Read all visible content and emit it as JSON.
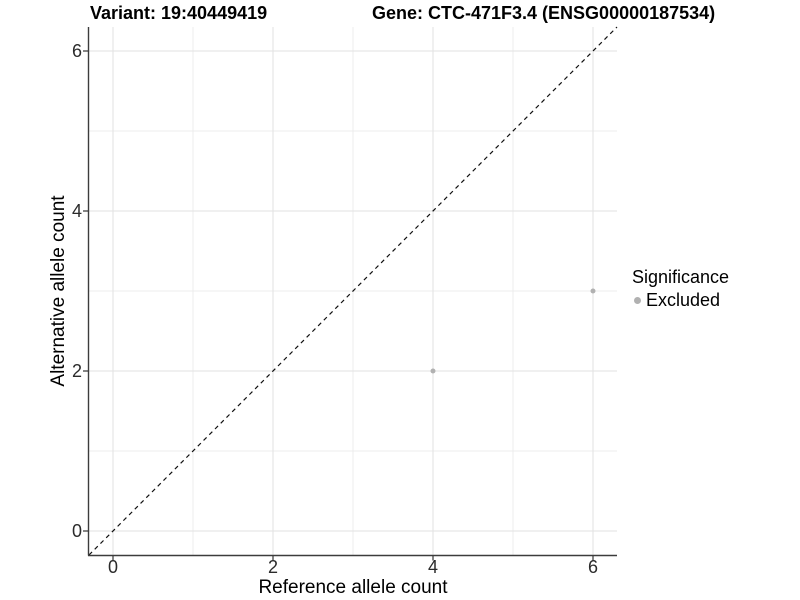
{
  "header": {
    "variant_title": "Variant: 19:40449419",
    "gene_title": "Gene: CTC-471F3.4 (ENSG00000187534)"
  },
  "legend": {
    "title": "Significance",
    "items": [
      {
        "label": "Excluded",
        "color": "#b1b1b1"
      }
    ]
  },
  "chart_data": {
    "type": "scatter",
    "titles": [
      "Variant: 19:40449419",
      "Gene: CTC-471F3.4 (ENSG00000187534)"
    ],
    "xlabel": "Reference allele count",
    "ylabel": "Alternative allele count",
    "xlim": [
      -0.3,
      6.3
    ],
    "ylim": [
      -0.3,
      6.3
    ],
    "x_ticks": [
      0,
      2,
      4,
      6
    ],
    "y_ticks": [
      0,
      2,
      4,
      6
    ],
    "grid_major": [
      0,
      2,
      4,
      6
    ],
    "grid_minor": [
      1,
      3,
      5
    ],
    "identity_line": {
      "from": [
        -0.3,
        -0.3
      ],
      "to": [
        6.3,
        6.3
      ],
      "style": "dashed",
      "color": "#111111"
    },
    "series": [
      {
        "name": "Excluded",
        "color": "#b1b1b1",
        "points": [
          {
            "x": 4,
            "y": 2
          },
          {
            "x": 6,
            "y": 3
          }
        ]
      }
    ],
    "legend_position": "right",
    "grid": "on",
    "colors": {
      "grid_major": "#e2e2e2",
      "grid_minor": "#ececec",
      "axis_line": "#3c3c3c",
      "tick_mark": "#333333"
    }
  }
}
